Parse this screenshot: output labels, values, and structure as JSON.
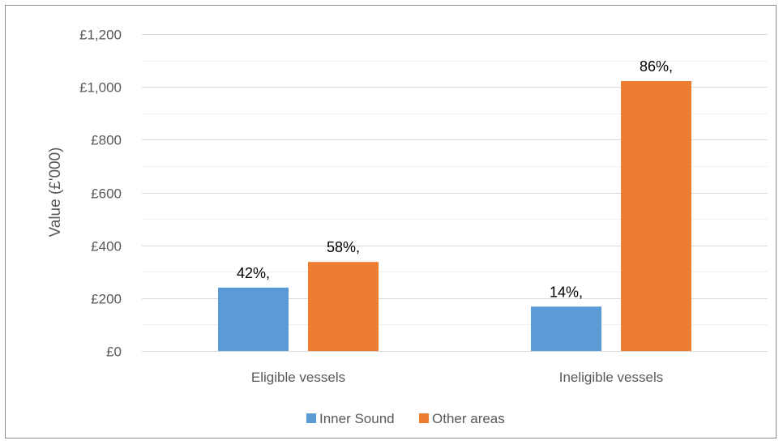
{
  "chart_data": {
    "type": "bar",
    "title": "",
    "xlabel": "",
    "ylabel": "Value (£'000)",
    "categories": [
      "Eligible vessels",
      "Ineligible vessels"
    ],
    "series": [
      {
        "name": "Inner Sound",
        "color": "#5b9bd5",
        "values": [
          240,
          168
        ],
        "labels": [
          "42%,",
          "14%,"
        ]
      },
      {
        "name": "Other areas",
        "color": "#ed7d31",
        "values": [
          337,
          1022
        ],
        "labels": [
          "58%,",
          "86%,"
        ]
      }
    ],
    "ylim": [
      0,
      1200
    ],
    "yticks": [
      0,
      200,
      400,
      600,
      800,
      1000,
      1200
    ],
    "ytick_labels": [
      "£0",
      "£200",
      "£400",
      "£600",
      "£800",
      "£1,000",
      "£1,200"
    ],
    "minor_gridlines": true,
    "legend_position": "bottom",
    "grid": true
  }
}
